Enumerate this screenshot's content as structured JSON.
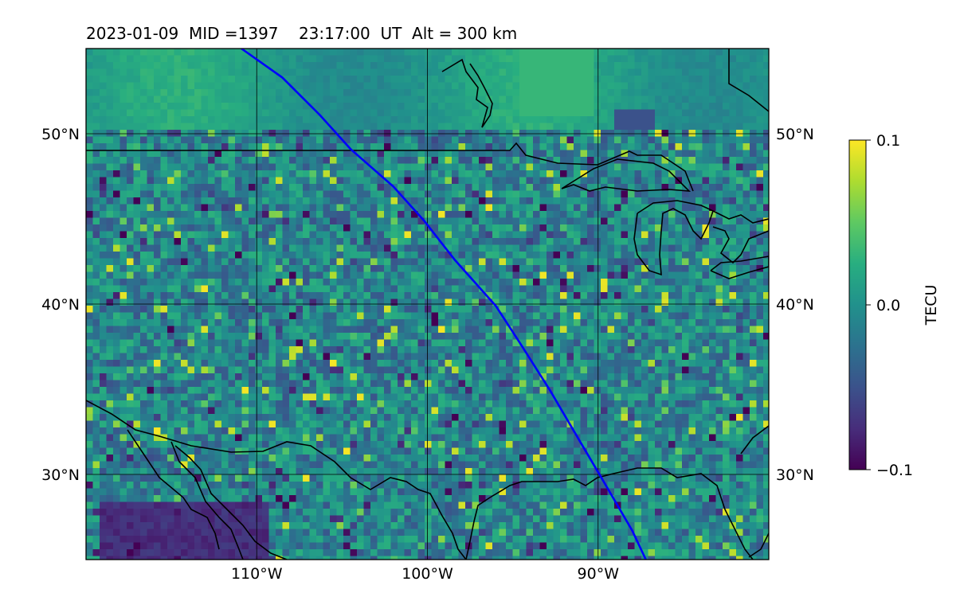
{
  "title": "2023-01-09  MID =1397    23:17:00  UT  Alt = 300 km",
  "map": {
    "lon_range": [
      -120,
      -80
    ],
    "lat_range": [
      25,
      55
    ],
    "lon_ticks": [
      {
        "value": -110,
        "label": "110°W"
      },
      {
        "value": -100,
        "label": "100°W"
      },
      {
        "value": -90,
        "label": "90°W"
      }
    ],
    "lat_ticks": [
      {
        "value": 30,
        "label": "30°N"
      },
      {
        "value": 40,
        "label": "40°N"
      },
      {
        "value": 50,
        "label": "50°N"
      }
    ],
    "grid": true,
    "field": "TEC perturbation (viridis colormap, speckled noise, mean ~0)",
    "track_color": "#0000ff",
    "coast_color": "#000000",
    "track": [
      [
        -110.9,
        55
      ],
      [
        -108.5,
        53.3
      ],
      [
        -106.3,
        51.1
      ],
      [
        -104.5,
        49.1
      ],
      [
        -102.0,
        46.9
      ],
      [
        -100.2,
        44.9
      ],
      [
        -98.4,
        42.6
      ],
      [
        -96.0,
        39.9
      ],
      [
        -94.5,
        37.6
      ],
      [
        -92.8,
        34.9
      ],
      [
        -91.1,
        32.0
      ],
      [
        -89.8,
        29.8
      ],
      [
        -88.0,
        26.7
      ],
      [
        -87.2,
        25
      ]
    ]
  },
  "colorbar": {
    "label": "TECU",
    "ticks": [
      {
        "value": 0.1,
        "label": "0.1"
      },
      {
        "value": 0.0,
        "label": "0.0"
      },
      {
        "value": -0.1,
        "label": "−0.1"
      }
    ],
    "range": [
      -0.1,
      0.1
    ],
    "colormap": "viridis"
  }
}
